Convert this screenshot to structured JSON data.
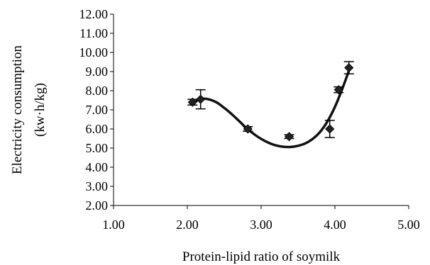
{
  "chart_data": {
    "type": "scatter",
    "xlabel": "Protein-lipid ratio of soymilk",
    "ylabel_line1": "Electricity consumption",
    "ylabel_line2": "(kw·h/kg)",
    "xlim": [
      1.0,
      5.0
    ],
    "ylim": [
      2.0,
      12.0
    ],
    "x_ticks": [
      "1.00",
      "2.00",
      "3.00",
      "4.00",
      "5.00"
    ],
    "y_ticks": [
      "2.00",
      "3.00",
      "4.00",
      "5.00",
      "6.00",
      "7.00",
      "8.00",
      "9.00",
      "10.00",
      "11.00",
      "12.00"
    ],
    "grid": false,
    "legend": "none",
    "series": [
      {
        "marker": "diamond",
        "color": "#222222",
        "points": [
          {
            "x": 2.07,
            "y": 7.4,
            "err": 0.15
          },
          {
            "x": 2.18,
            "y": 7.55,
            "err": 0.5
          },
          {
            "x": 2.82,
            "y": 6.0,
            "err": 0.12
          },
          {
            "x": 3.38,
            "y": 5.6,
            "err": 0.1
          },
          {
            "x": 3.93,
            "y": 6.0,
            "err": 0.45
          },
          {
            "x": 4.05,
            "y": 8.05,
            "err": 0.15
          },
          {
            "x": 4.19,
            "y": 9.2,
            "err": 0.32
          }
        ]
      }
    ],
    "fit_curve": {
      "color": "#111111",
      "points": [
        [
          2.07,
          7.25
        ],
        [
          2.13,
          7.48
        ],
        [
          2.2,
          7.58
        ],
        [
          2.3,
          7.54
        ],
        [
          2.4,
          7.38
        ],
        [
          2.5,
          7.1
        ],
        [
          2.6,
          6.78
        ],
        [
          2.7,
          6.42
        ],
        [
          2.8,
          6.05
        ],
        [
          2.9,
          5.74
        ],
        [
          3.0,
          5.48
        ],
        [
          3.1,
          5.28
        ],
        [
          3.2,
          5.14
        ],
        [
          3.3,
          5.07
        ],
        [
          3.4,
          5.06
        ],
        [
          3.5,
          5.12
        ],
        [
          3.6,
          5.25
        ],
        [
          3.7,
          5.48
        ],
        [
          3.8,
          5.85
        ],
        [
          3.9,
          6.4
        ],
        [
          4.0,
          7.15
        ],
        [
          4.1,
          8.1
        ],
        [
          4.19,
          9.05
        ]
      ]
    }
  }
}
